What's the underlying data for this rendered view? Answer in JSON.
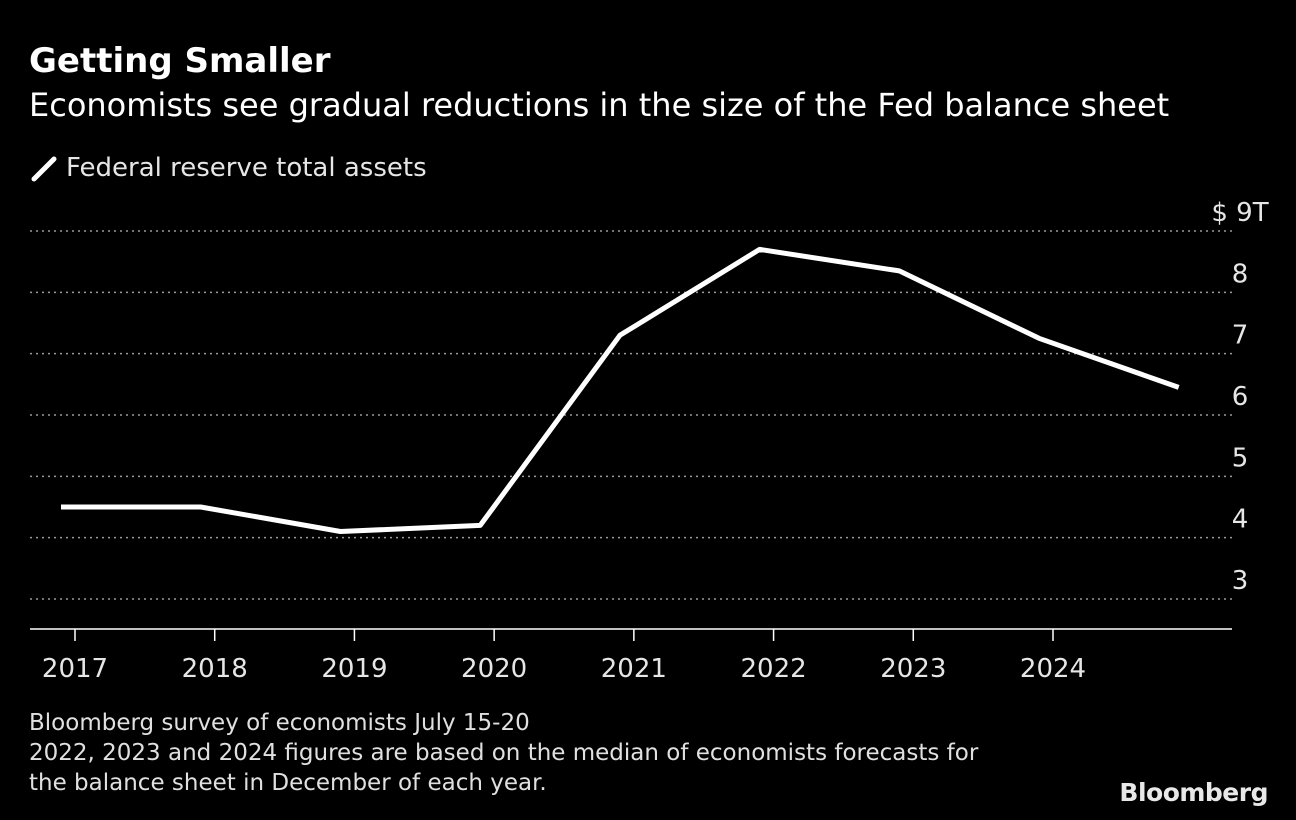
{
  "title": "Getting Smaller",
  "subtitle": "Economists see gradual reductions in the size of the Fed balance sheet",
  "legend": {
    "label": "Federal reserve total assets",
    "icon": "line-swatch-icon"
  },
  "colors": {
    "background": "#000000",
    "line": "#ffffff",
    "grid": "#9a9a9a",
    "text": "#e6e6e6"
  },
  "source": {
    "line1": "Bloomberg survey of economists July 15-20",
    "line2": "2022, 2023 and 2024 figures are based on the median of economists forecasts for",
    "line3": "the balance sheet in December of each year."
  },
  "logo": "Bloomberg",
  "chart_data": {
    "type": "line",
    "title": "Getting Smaller",
    "subtitle": "Economists see gradual reductions in the size of the Fed balance sheet",
    "x_ticks": [
      "2017",
      "2018",
      "2019",
      "2020",
      "2021",
      "2022",
      "2023",
      "2024"
    ],
    "y_ticks": [
      "3",
      "4",
      "5",
      "6",
      "7",
      "8",
      "$ 9T"
    ],
    "ylim": [
      2.5,
      9
    ],
    "y_axis_side": "right",
    "grid": "horizontal-dotted",
    "legend_position": "top-left",
    "series": [
      {
        "name": "Federal reserve total assets",
        "x": [
          2016.9,
          2017.9,
          2018.9,
          2019.9,
          2020.9,
          2021.9,
          2022.9,
          2023.9,
          2024.9
        ],
        "y": [
          4.5,
          4.5,
          4.1,
          4.2,
          7.3,
          8.7,
          8.35,
          7.25,
          6.45
        ]
      }
    ]
  }
}
